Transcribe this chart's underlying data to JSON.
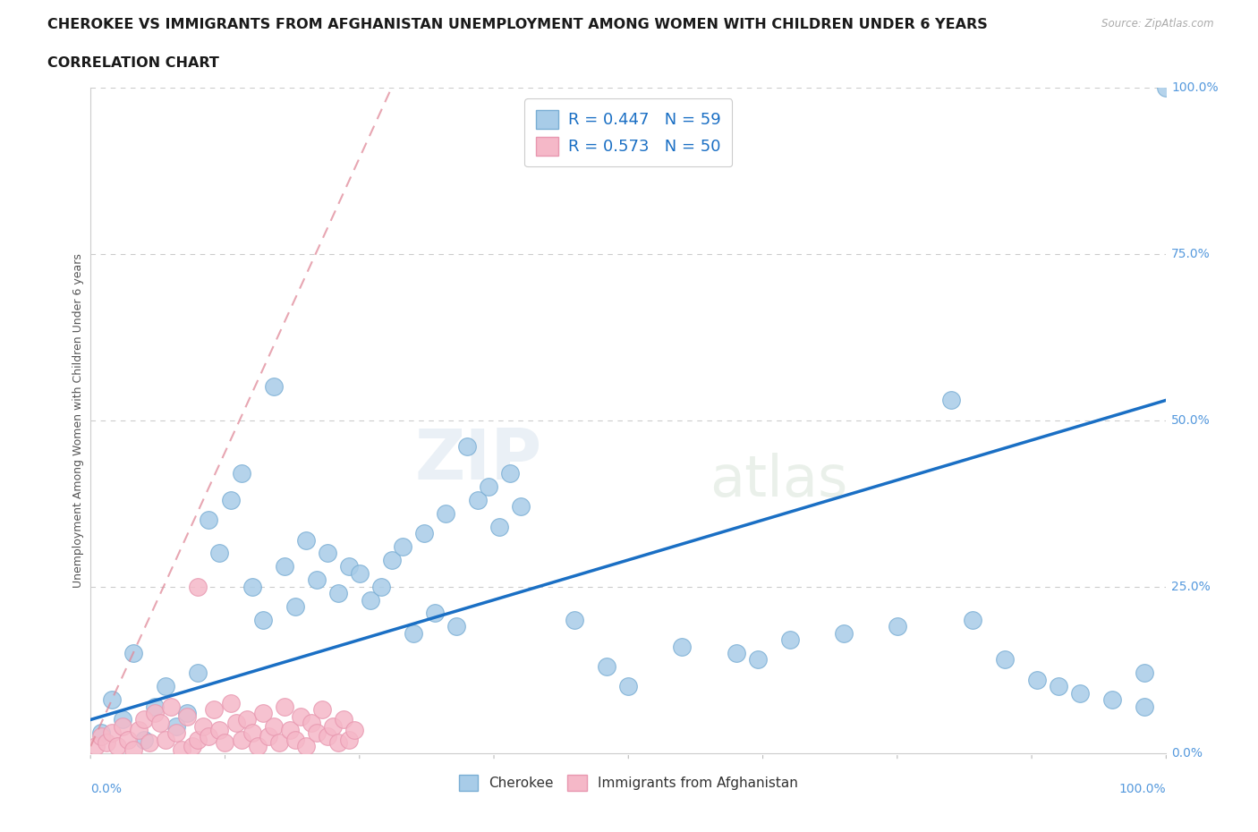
{
  "title_line1": "CHEROKEE VS IMMIGRANTS FROM AFGHANISTAN UNEMPLOYMENT AMONG WOMEN WITH CHILDREN UNDER 6 YEARS",
  "title_line2": "CORRELATION CHART",
  "source_text": "Source: ZipAtlas.com",
  "ylabel": "Unemployment Among Women with Children Under 6 years",
  "cherokee_label": "Cherokee",
  "afghan_label": "Immigrants from Afghanistan",
  "cherokee_color": "#a8cce8",
  "cherokee_edge": "#7aaed4",
  "afghan_color": "#f5b8c8",
  "afghan_edge": "#e898b0",
  "regression_blue": "#1a6fc4",
  "regression_pink": "#e08898",
  "legend_R1": "R = 0.447",
  "legend_N1": "N = 59",
  "legend_R2": "R = 0.573",
  "legend_N2": "N = 50",
  "xlim": [
    0,
    100
  ],
  "ylim": [
    0,
    100
  ],
  "blue_line_x0": 0,
  "blue_line_y0": 5,
  "blue_line_x1": 100,
  "blue_line_y1": 53,
  "pink_line_x0": 0,
  "pink_line_y0": 1,
  "pink_line_x1": 28,
  "pink_line_y1": 100,
  "cherokee_x": [
    1,
    2,
    3,
    4,
    5,
    6,
    7,
    8,
    9,
    10,
    11,
    12,
    13,
    14,
    15,
    16,
    17,
    18,
    19,
    20,
    21,
    22,
    23,
    24,
    25,
    26,
    27,
    28,
    29,
    30,
    31,
    32,
    33,
    34,
    35,
    36,
    37,
    38,
    39,
    40,
    45,
    48,
    50,
    55,
    60,
    62,
    65,
    70,
    75,
    80,
    82,
    85,
    88,
    90,
    92,
    95,
    98,
    98,
    100
  ],
  "cherokee_y": [
    3,
    8,
    5,
    15,
    2,
    7,
    10,
    4,
    6,
    12,
    35,
    30,
    38,
    42,
    25,
    20,
    55,
    28,
    22,
    32,
    26,
    30,
    24,
    28,
    27,
    23,
    25,
    29,
    31,
    18,
    33,
    21,
    36,
    19,
    46,
    38,
    40,
    34,
    42,
    37,
    20,
    13,
    10,
    16,
    15,
    14,
    17,
    18,
    19,
    53,
    20,
    14,
    11,
    10,
    9,
    8,
    12,
    7,
    100
  ],
  "afghan_x": [
    0.5,
    1,
    1.5,
    2,
    2.5,
    3,
    3.5,
    4,
    4.5,
    5,
    5.5,
    6,
    6.5,
    7,
    7.5,
    8,
    8.5,
    9,
    9.5,
    10,
    10.5,
    11,
    11.5,
    12,
    12.5,
    13,
    13.5,
    14,
    14.5,
    15,
    15.5,
    16,
    16.5,
    17,
    17.5,
    18,
    18.5,
    19,
    19.5,
    20,
    20.5,
    21,
    21.5,
    22,
    22.5,
    23,
    23.5,
    24,
    24.5,
    10
  ],
  "afghan_y": [
    1,
    2.5,
    1.5,
    3,
    1,
    4,
    2,
    0.5,
    3.5,
    5,
    1.5,
    6,
    4.5,
    2,
    7,
    3,
    0.5,
    5.5,
    1,
    2,
    4,
    2.5,
    6.5,
    3.5,
    1.5,
    7.5,
    4.5,
    2,
    5,
    3,
    1,
    6,
    2.5,
    4,
    1.5,
    7,
    3.5,
    2,
    5.5,
    1,
    4.5,
    3,
    6.5,
    2.5,
    4,
    1.5,
    5,
    2,
    3.5,
    25
  ]
}
